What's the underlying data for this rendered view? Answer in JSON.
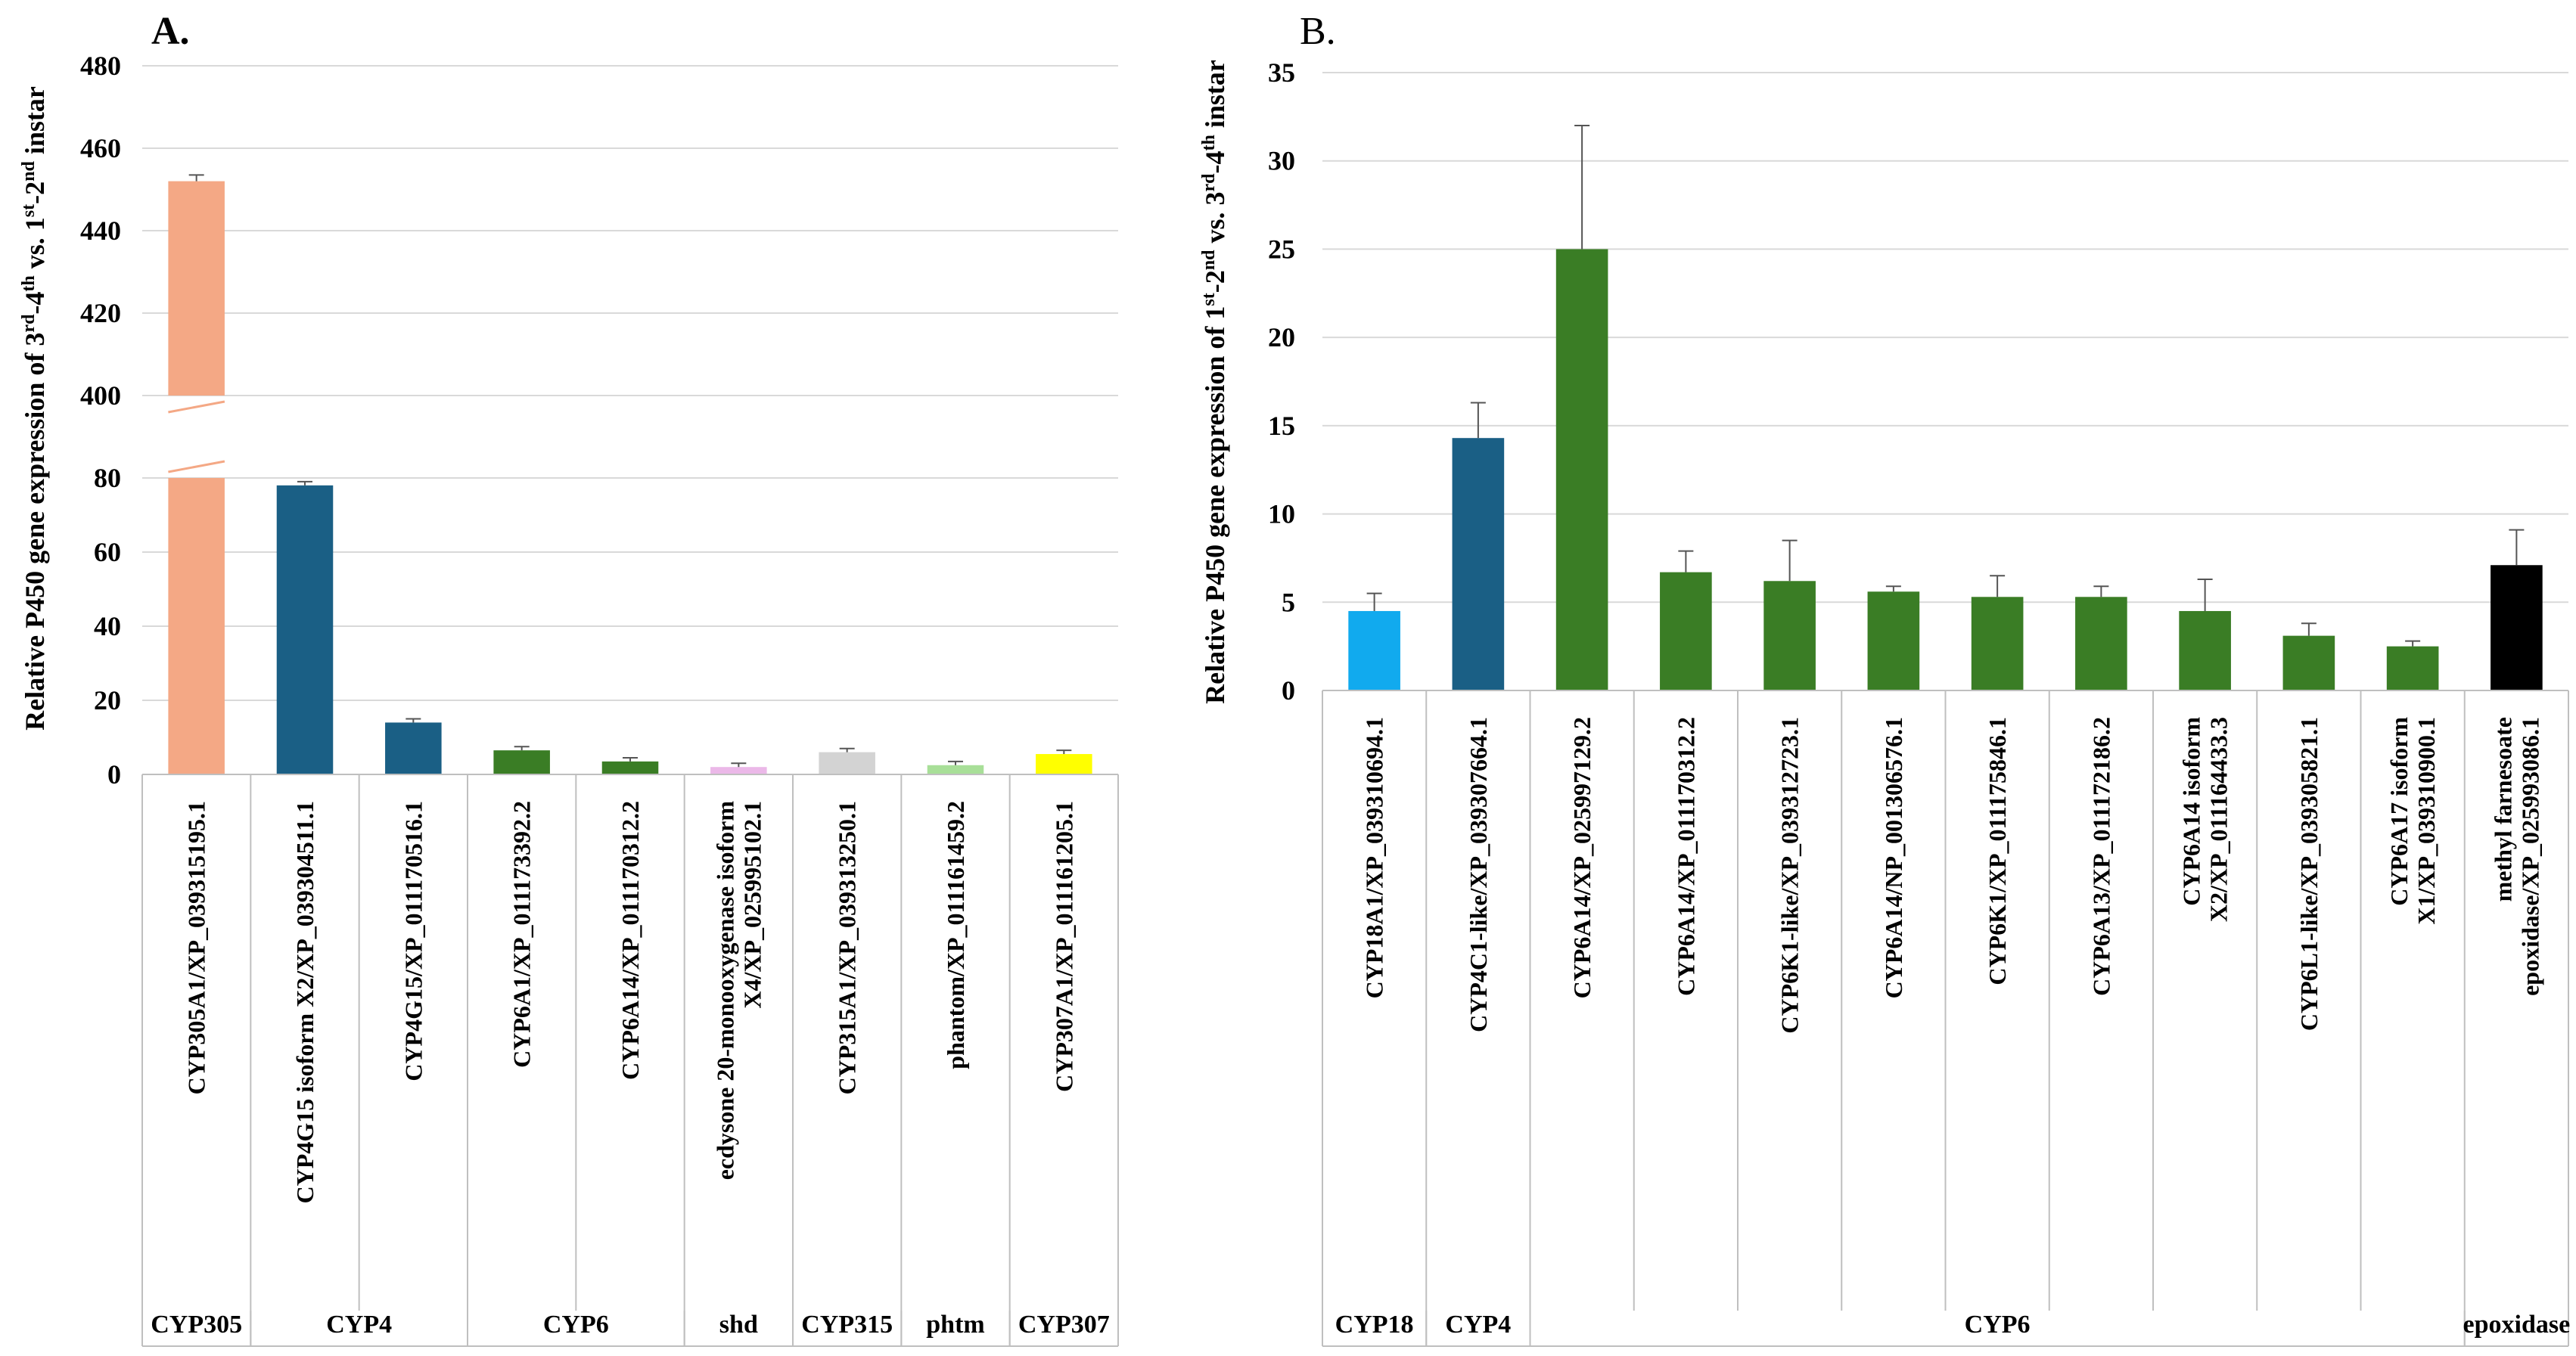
{
  "chart_data": [
    {
      "type": "bar",
      "panel": "A.",
      "title": "",
      "ylabel": "Relative P450 gene expression of 3rd-4th vs. 1st-2nd instar",
      "ylabel_parts": [
        "Relative P450 gene expression of 3",
        "rd",
        "-4",
        "th",
        " vs. 1",
        "st",
        "-2",
        "nd",
        " instar"
      ],
      "axis_break": true,
      "lower_segment": {
        "ylim": [
          0,
          80
        ],
        "ticks": [
          "0",
          "20",
          "40",
          "60",
          "80"
        ]
      },
      "upper_segment": {
        "ylim": [
          400,
          480
        ],
        "ticks": [
          "400",
          "420",
          "440",
          "460",
          "480"
        ]
      },
      "categories": [
        "CYP305A1/XP_039315195.1",
        "CYP4G15 isoform X2/XP_039304511.1",
        "CYP4G15/XP_011170516.1",
        "CYP6A1/XP_011173392.2",
        "CYP6A14/XP_011170312.2",
        "ecdysone 20-monooxygenase isoform X4/XP_025995102.1",
        "CYP315A1/XP_039313250.1",
        "phantom/XP_011161459.2",
        "CYP307A1/XP_011161205.1"
      ],
      "values": [
        452,
        78,
        14,
        6.5,
        3.5,
        2,
        6,
        2.5,
        5.5
      ],
      "errors": [
        1.5,
        1,
        1,
        1,
        1,
        1,
        1,
        1,
        1
      ],
      "colors": [
        "#f4a885",
        "#1a5f85",
        "#1a5f85",
        "#3a7d25",
        "#3a7d25",
        "#ebb8e8",
        "#d3d3d3",
        "#a8df98",
        "#ffff00"
      ],
      "groups": [
        {
          "label": "CYP305",
          "start": 0,
          "end": 0
        },
        {
          "label": "CYP4",
          "start": 1,
          "end": 2
        },
        {
          "label": "CYP6",
          "start": 3,
          "end": 4
        },
        {
          "label": "shd",
          "start": 5,
          "end": 5
        },
        {
          "label": "CYP315",
          "start": 6,
          "end": 6
        },
        {
          "label": "phtm",
          "start": 7,
          "end": 7
        },
        {
          "label": "CYP307",
          "start": 8,
          "end": 8
        }
      ]
    },
    {
      "type": "bar",
      "panel": "B.",
      "title": "",
      "ylabel": "Relative P450 gene expression of 1st-2nd vs. 3rd-4th instar",
      "ylabel_parts": [
        "Relative P450 gene expression of 1",
        "st",
        "-2",
        "nd",
        " vs. 3",
        "rd",
        "-4",
        "th",
        " instar"
      ],
      "ylim": [
        0,
        35
      ],
      "ticks": [
        "0",
        "5",
        "10",
        "15",
        "20",
        "25",
        "30",
        "35"
      ],
      "categories": [
        "CYP18A1/XP_039310694.1",
        "CYP4C1-like/XP_039307664.1",
        "CYP6A14/XP_025997129.2",
        "CYP6A14/XP_011170312.2",
        "CYP6K1-like/XP_039312723.1",
        "CYP6A14/NP_001306576.1",
        "CYP6K1/XP_011175846.1",
        "CYP6A13/XP_011172186.2",
        "CYP6A14 isoform X2/XP_011164433.3",
        "CYP6L1-like/XP_039305821.1",
        "CYP6A17 isoform X1/XP_039310900.1",
        "methyl farnesoate epoxidase/XP_025993086.1"
      ],
      "values": [
        4.5,
        14.3,
        25,
        6.7,
        6.2,
        5.6,
        5.3,
        5.3,
        4.5,
        3.1,
        2.5,
        7.1
      ],
      "errors": [
        1,
        2,
        7,
        1.2,
        2.3,
        0.3,
        1.2,
        0.6,
        1.8,
        0.7,
        0.3,
        2
      ],
      "colors": [
        "#11aaee",
        "#1a5f85",
        "#3a7d25",
        "#3a7d25",
        "#3a7d25",
        "#3a7d25",
        "#3a7d25",
        "#3a7d25",
        "#3a7d25",
        "#3a7d25",
        "#3a7d25",
        "#000000"
      ],
      "groups": [
        {
          "label": "CYP18",
          "start": 0,
          "end": 0
        },
        {
          "label": "CYP4",
          "start": 1,
          "end": 1
        },
        {
          "label": "CYP6",
          "start": 2,
          "end": 10
        },
        {
          "label": "epoxidase",
          "start": 11,
          "end": 11
        }
      ]
    }
  ]
}
